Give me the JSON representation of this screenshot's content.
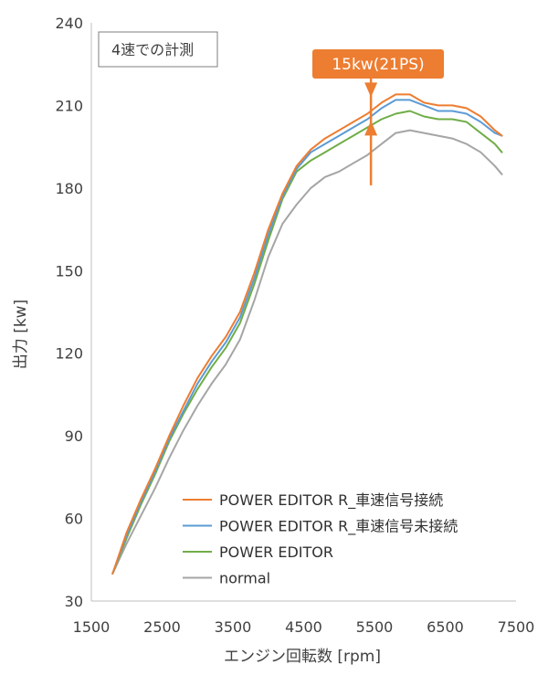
{
  "chart_data": {
    "type": "line",
    "title": "",
    "xlabel": "エンジン回転数 [rpm]",
    "ylabel": "出力 [kw]",
    "xlim": [
      1500,
      7500
    ],
    "ylim": [
      30,
      240
    ],
    "xticks": [
      1500,
      2500,
      3500,
      4500,
      5500,
      6500,
      7500
    ],
    "yticks": [
      30,
      60,
      90,
      120,
      150,
      180,
      210,
      240
    ],
    "grid": false,
    "legend_position": "bottom-right",
    "condition_label": "4速での計測",
    "annotation": {
      "text": "15kw(21PS)",
      "x": 5450,
      "y_top": 213,
      "y_bottom": 181,
      "color": "#ED7D31"
    },
    "series": [
      {
        "name": "POWER EDITOR R_車速信号接続",
        "color": "#ED7D31",
        "x": [
          1800,
          2000,
          2200,
          2400,
          2600,
          2800,
          3000,
          3200,
          3400,
          3600,
          3800,
          4000,
          4200,
          4400,
          4600,
          4800,
          5000,
          5200,
          5400,
          5600,
          5800,
          6000,
          6200,
          6400,
          6600,
          6800,
          7000,
          7200,
          7300
        ],
        "y": [
          40,
          55,
          67,
          78,
          90,
          101,
          111,
          119,
          126,
          135,
          149,
          165,
          178,
          188,
          194,
          198,
          201,
          204,
          207,
          211,
          214,
          214,
          211,
          210,
          210,
          209,
          206,
          201,
          199
        ]
      },
      {
        "name": "POWER EDITOR R_車速信号未接続",
        "color": "#5B9BD5",
        "x": [
          1800,
          2000,
          2200,
          2400,
          2600,
          2800,
          3000,
          3200,
          3400,
          3600,
          3800,
          4000,
          4200,
          4400,
          4600,
          4800,
          5000,
          5200,
          5400,
          5600,
          5800,
          6000,
          6200,
          6400,
          6600,
          6800,
          7000,
          7200,
          7300
        ],
        "y": [
          40,
          54,
          66,
          77,
          89,
          99,
          109,
          117,
          124,
          133,
          147,
          163,
          177,
          187,
          193,
          196,
          199,
          202,
          205,
          209,
          212,
          212,
          210,
          208,
          208,
          207,
          204,
          200,
          199
        ]
      },
      {
        "name": "POWER EDITOR",
        "color": "#70AD47",
        "x": [
          1800,
          2000,
          2200,
          2400,
          2600,
          2800,
          3000,
          3200,
          3400,
          3600,
          3800,
          4000,
          4200,
          4400,
          4600,
          4800,
          5000,
          5200,
          5400,
          5600,
          5800,
          6000,
          6200,
          6400,
          6600,
          6800,
          7000,
          7200,
          7300
        ],
        "y": [
          40,
          53,
          65,
          76,
          88,
          98,
          107,
          115,
          122,
          131,
          145,
          161,
          176,
          186,
          190,
          193,
          196,
          199,
          202,
          205,
          207,
          208,
          206,
          205,
          205,
          204,
          200,
          196,
          193
        ]
      },
      {
        "name": "normal",
        "color": "#A5A5A5",
        "x": [
          1800,
          2000,
          2200,
          2400,
          2600,
          2800,
          3000,
          3200,
          3400,
          3600,
          3800,
          4000,
          4200,
          4400,
          4600,
          4800,
          5000,
          5200,
          5400,
          5600,
          5800,
          6000,
          6200,
          6400,
          6600,
          6800,
          7000,
          7200,
          7300
        ],
        "y": [
          40,
          51,
          61,
          71,
          82,
          92,
          101,
          109,
          116,
          125,
          139,
          155,
          167,
          174,
          180,
          184,
          186,
          189,
          192,
          196,
          200,
          201,
          200,
          199,
          198,
          196,
          193,
          188,
          185
        ]
      }
    ]
  }
}
